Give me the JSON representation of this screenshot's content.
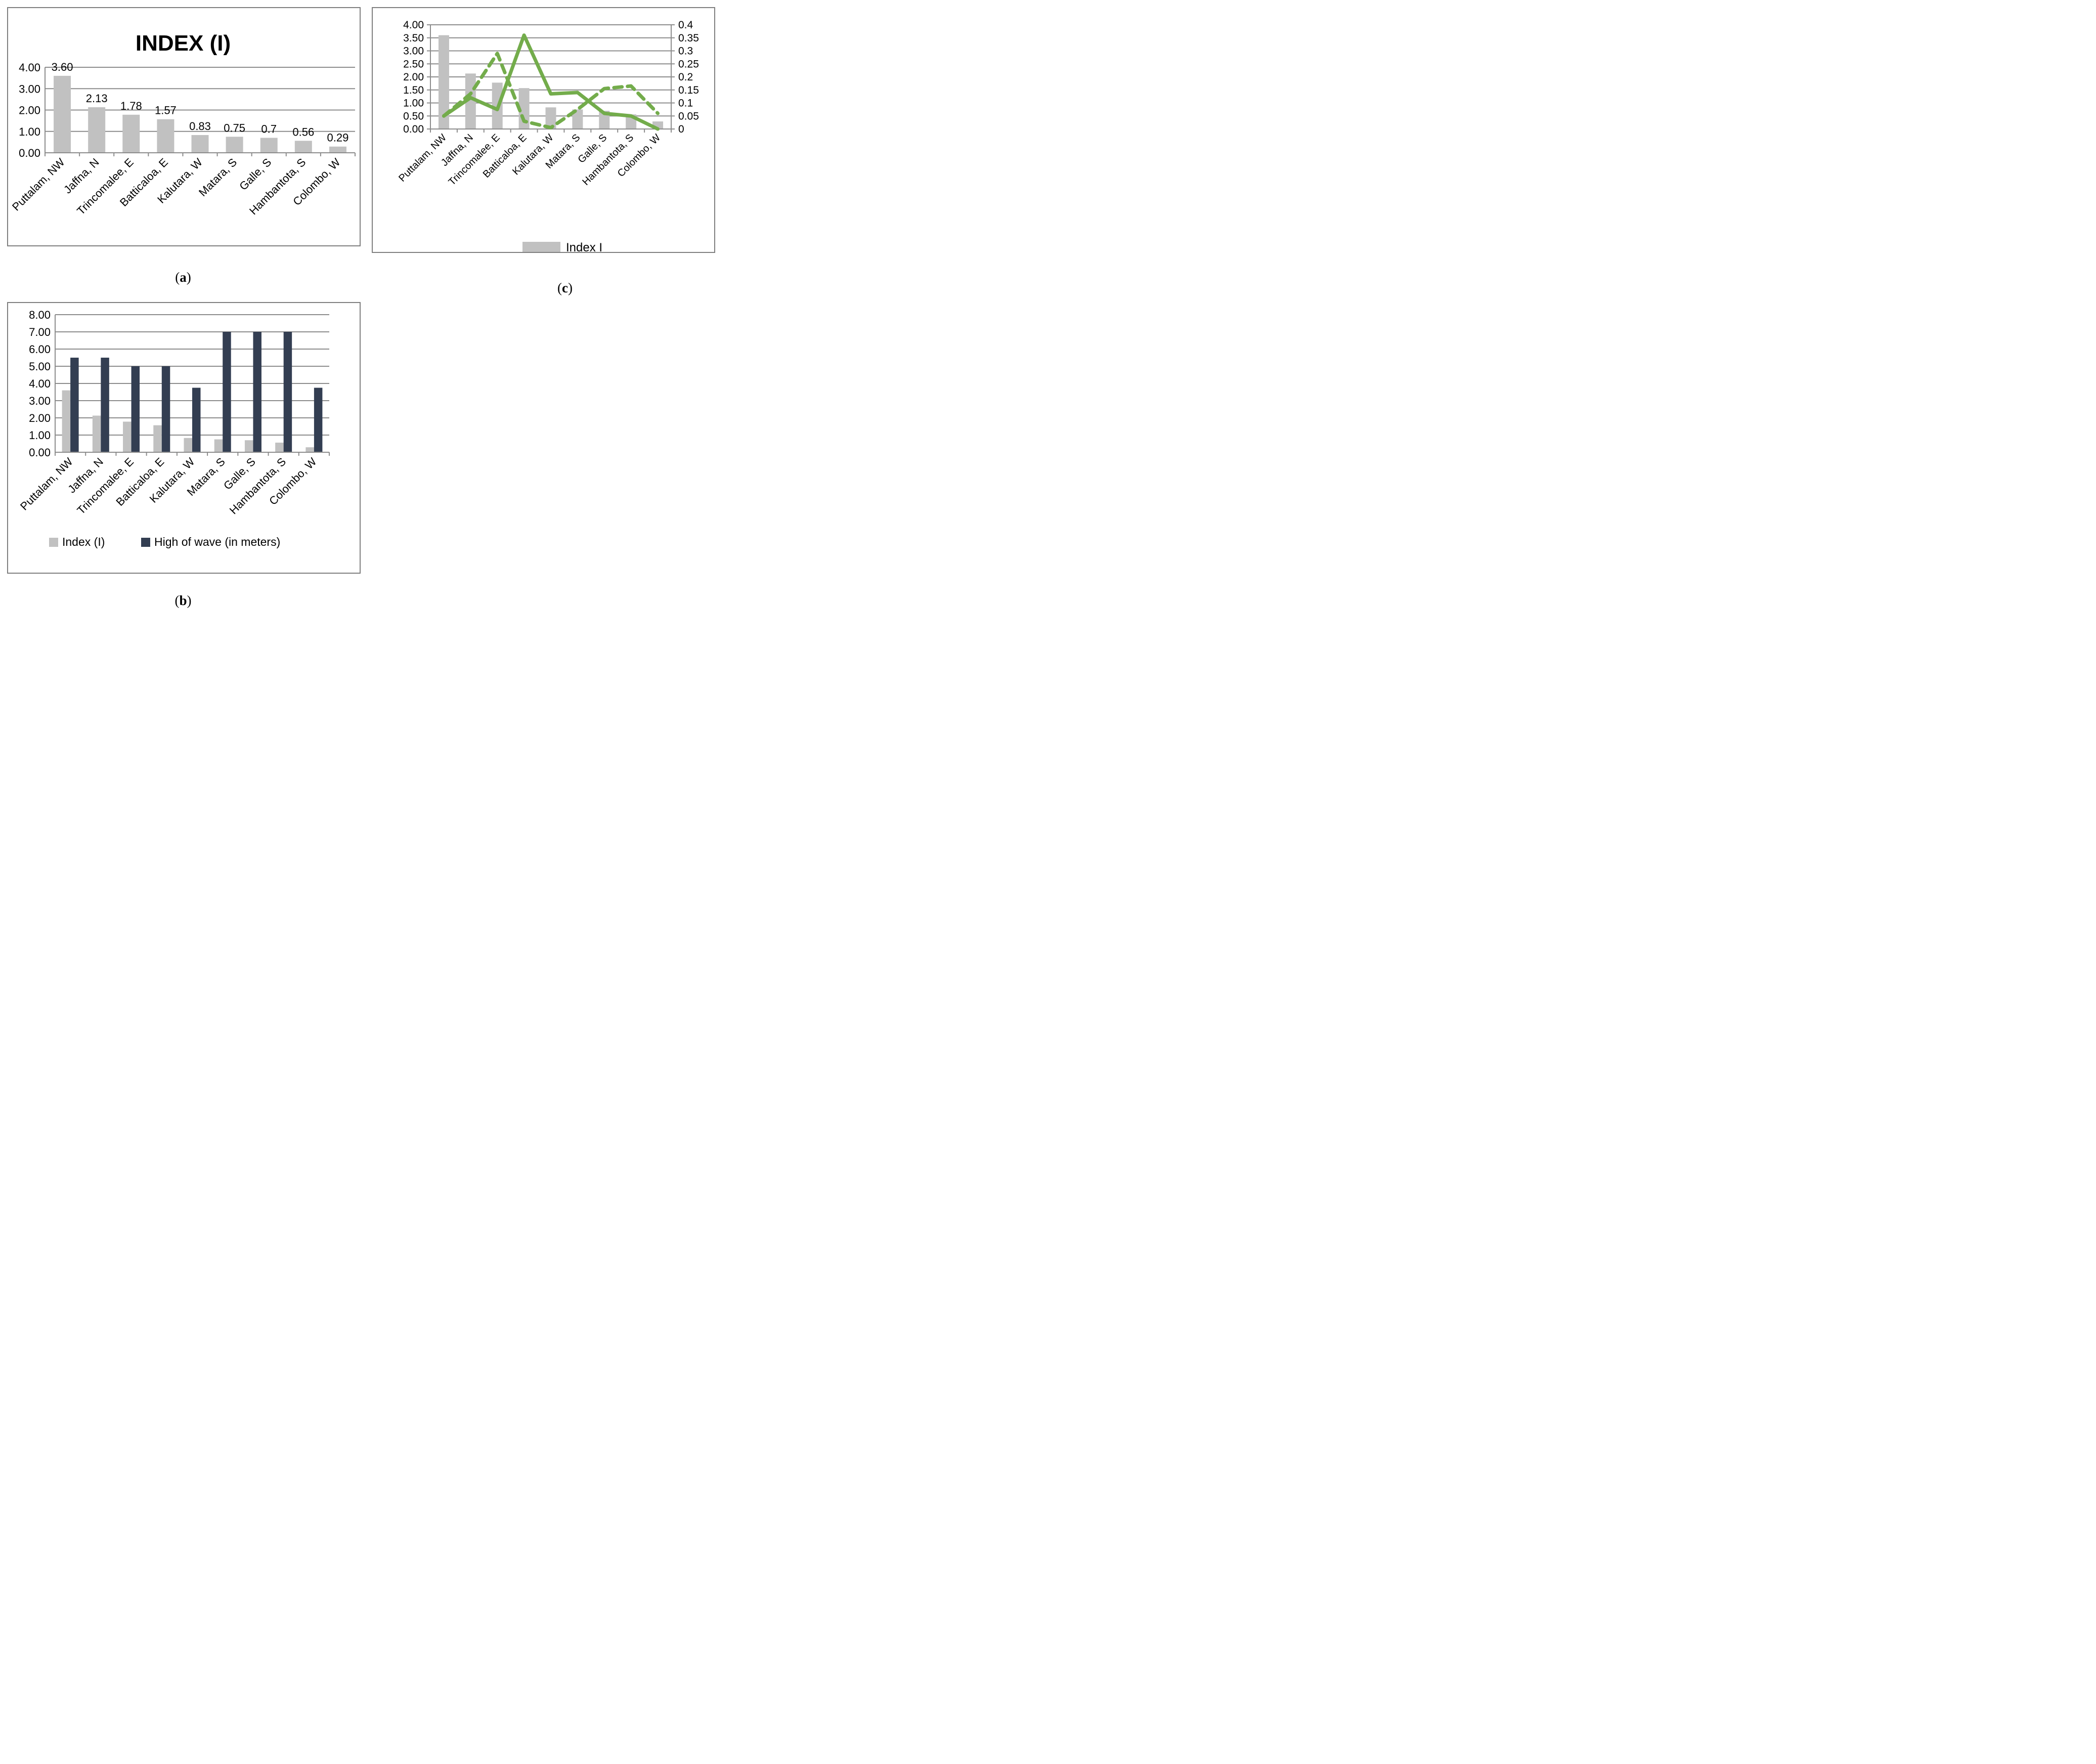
{
  "colors": {
    "bar_gray": "#C1C1C1",
    "wave_navy": "#333E52",
    "line_green": "#73AC4B",
    "grid_gray": "#8C8C8C",
    "box_border": "#7F7F7F",
    "text": "#000000"
  },
  "captions": {
    "a": {
      "open": "(",
      "letter": "a",
      "close": ")"
    },
    "b": {
      "open": "(",
      "letter": "b",
      "close": ")"
    },
    "c": {
      "open": "(",
      "letter": "c",
      "close": ")"
    }
  },
  "chart_data": [
    {
      "id": "a",
      "type": "bar",
      "title": "INDEX (I)",
      "categories": [
        "Puttalam, NW",
        "Jaffna, N",
        "Trincomalee, E",
        "Batticaloa, E",
        "Kalutara, W",
        "Matara, S",
        "Galle, S",
        "Hambantota, S",
        "Colombo, W"
      ],
      "values": [
        3.6,
        2.13,
        1.78,
        1.57,
        0.83,
        0.75,
        0.7,
        0.56,
        0.29
      ],
      "data_labels": [
        "3.60",
        "2.13",
        "1.78",
        "1.57",
        "0.83",
        "0.75",
        "0.7",
        "0.56",
        "0.29"
      ],
      "ylim": [
        0,
        4
      ],
      "ytick_step": 1,
      "ytick_labels": [
        "0.00",
        "1.00",
        "2.00",
        "3.00",
        "4.00"
      ],
      "grid": true,
      "legend": null
    },
    {
      "id": "c",
      "type": "combo-bar-line",
      "title": null,
      "categories": [
        "Puttalam, NW",
        "Jaffna, N",
        "Trincomalee, E",
        "Batticaloa, E",
        "Kalutara, W",
        "Matara, S",
        "Galle, S",
        "Hambantota, S",
        "Colombo, W"
      ],
      "bar_series": [
        {
          "name": "Index I",
          "axis": "left",
          "values": [
            3.6,
            2.13,
            1.78,
            1.57,
            0.83,
            0.75,
            0.7,
            0.56,
            0.29
          ]
        }
      ],
      "line_series": [
        {
          "name": "solid green line",
          "style": "solid",
          "axis": "right",
          "values": [
            0.05,
            0.12,
            0.075,
            0.36,
            0.135,
            0.14,
            0.06,
            0.05,
            0.0
          ]
        },
        {
          "name": "dashed green line",
          "style": "dashed",
          "axis": "right",
          "values": [
            0.05,
            0.135,
            0.29,
            0.03,
            0.005,
            0.075,
            0.155,
            0.165,
            0.06
          ]
        }
      ],
      "left_ylim": [
        0,
        4
      ],
      "left_tick_step": 0.5,
      "left_tick_labels": [
        "4.00",
        "3.50",
        "3.00",
        "2.50",
        "2.00",
        "1.50",
        "1.00",
        "0.50",
        "0.00"
      ],
      "right_ylim": [
        0,
        0.4
      ],
      "right_tick_step": 0.05,
      "right_tick_labels": [
        "0.4",
        "0.35",
        "0.3",
        "0.25",
        "0.2",
        "0.15",
        "0.1",
        "0.05",
        "0"
      ],
      "grid": true,
      "legend": [
        "Index I"
      ],
      "legend_position": "bottom"
    },
    {
      "id": "b",
      "type": "grouped-bar",
      "title": null,
      "categories": [
        "Puttalam, NW",
        "Jaffna, N",
        "Trincomalee, E",
        "Batticaloa, E",
        "Kalutara, W",
        "Matara, S",
        "Galle, S",
        "Hambantota, S",
        "Colombo, W"
      ],
      "series": [
        {
          "name": "Index (I)",
          "color_key": "bar_gray",
          "values": [
            3.6,
            2.13,
            1.78,
            1.57,
            0.83,
            0.75,
            0.7,
            0.56,
            0.29
          ]
        },
        {
          "name": "High of wave (in meters)",
          "color_key": "wave_navy",
          "values": [
            5.5,
            5.5,
            5.0,
            5.0,
            3.75,
            7.0,
            7.0,
            7.0,
            3.75
          ]
        }
      ],
      "ylim": [
        0,
        8
      ],
      "ytick_step": 1,
      "ytick_labels": [
        "0.00",
        "1.00",
        "2.00",
        "3.00",
        "4.00",
        "5.00",
        "6.00",
        "7.00",
        "8.00"
      ],
      "grid": true,
      "legend_position": "bottom"
    }
  ]
}
